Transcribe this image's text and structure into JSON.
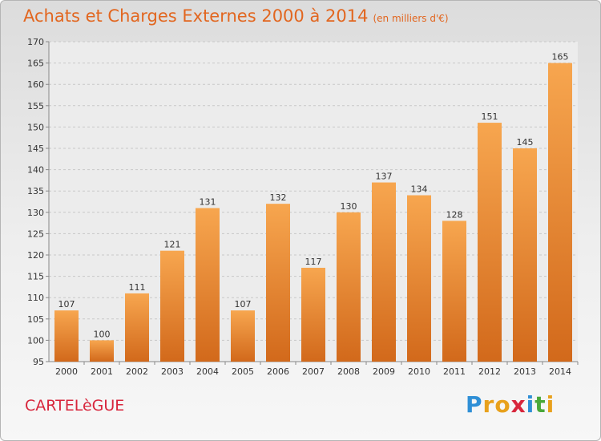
{
  "chart_data": {
    "type": "bar",
    "title": "Achats et Charges Externes 2000 à 2014",
    "subtitle": "(en milliers d'€)",
    "categories": [
      "2000",
      "2001",
      "2002",
      "2003",
      "2004",
      "2005",
      "2006",
      "2007",
      "2008",
      "2009",
      "2010",
      "2011",
      "2012",
      "2013",
      "2014"
    ],
    "values": [
      107,
      100,
      111,
      121,
      131,
      107,
      132,
      117,
      130,
      137,
      134,
      128,
      151,
      145,
      165
    ],
    "ylim": [
      95,
      170
    ],
    "yticks": [
      95,
      100,
      105,
      110,
      115,
      120,
      125,
      130,
      135,
      140,
      145,
      150,
      155,
      160,
      165,
      170
    ],
    "grid": true,
    "bar_color_top": "#f7a64f",
    "bar_color_bottom": "#d2691b"
  },
  "commune": "CARTELèGUE",
  "logo": {
    "letters": [
      "P",
      "r",
      "o",
      "x",
      "i",
      "t",
      "i"
    ],
    "colors": [
      "#2f8fd6",
      "#e8a11c",
      "#e8a11c",
      "#d8263c",
      "#2f8fd6",
      "#4aa83a",
      "#e8a11c"
    ]
  },
  "colors": {
    "title": "#e2661f",
    "commune": "#d8263c"
  }
}
